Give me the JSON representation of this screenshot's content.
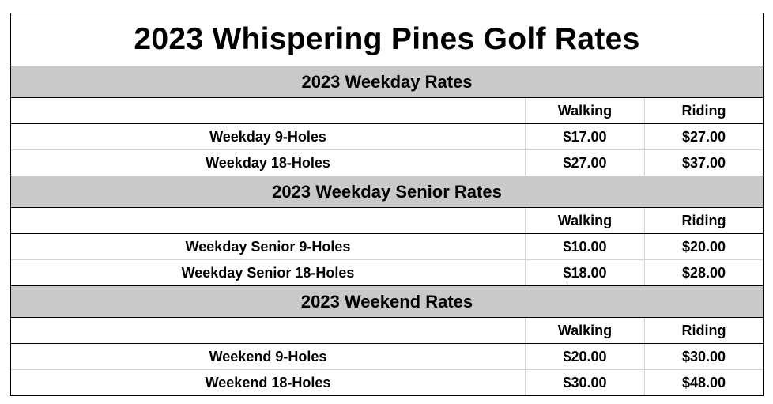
{
  "title": "2023 Whispering Pines Golf Rates",
  "columns": {
    "walking": "Walking",
    "riding": "Riding"
  },
  "sections": [
    {
      "header": "2023 Weekday Rates",
      "rows": [
        {
          "label": "Weekday 9-Holes",
          "walking": "$17.00",
          "riding": "$27.00"
        },
        {
          "label": "Weekday 18-Holes",
          "walking": "$27.00",
          "riding": "$37.00"
        }
      ]
    },
    {
      "header": "2023 Weekday Senior Rates",
      "rows": [
        {
          "label": "Weekday Senior 9-Holes",
          "walking": "$10.00",
          "riding": "$20.00"
        },
        {
          "label": "Weekday Senior 18-Holes",
          "walking": "$18.00",
          "riding": "$28.00"
        }
      ]
    },
    {
      "header": "2023 Weekend Rates",
      "rows": [
        {
          "label": "Weekend 9-Holes",
          "walking": "$20.00",
          "riding": "$30.00"
        },
        {
          "label": "Weekend 18-Holes",
          "walking": "$30.00",
          "riding": "$48.00"
        }
      ]
    }
  ],
  "colors": {
    "section_header_bg": "#c9c9c9",
    "gridline": "#d4d4d4"
  }
}
